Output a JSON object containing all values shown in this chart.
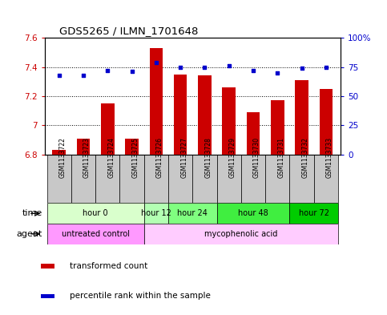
{
  "title": "GDS5265 / ILMN_1701648",
  "samples": [
    "GSM1133722",
    "GSM1133723",
    "GSM1133724",
    "GSM1133725",
    "GSM1133726",
    "GSM1133727",
    "GSM1133728",
    "GSM1133729",
    "GSM1133730",
    "GSM1133731",
    "GSM1133732",
    "GSM1133733"
  ],
  "bar_values": [
    6.83,
    6.91,
    7.15,
    6.91,
    7.53,
    7.35,
    7.34,
    7.26,
    7.09,
    7.17,
    7.31,
    7.25
  ],
  "dot_values": [
    68,
    68,
    72,
    71,
    79,
    75,
    75,
    76,
    72,
    70,
    74,
    75
  ],
  "bar_color": "#cc0000",
  "dot_color": "#0000cc",
  "ylim_left": [
    6.8,
    7.6
  ],
  "ylim_right": [
    0,
    100
  ],
  "yticks_left": [
    6.8,
    7.0,
    7.2,
    7.4,
    7.6
  ],
  "ytick_labels_left": [
    "6.8",
    "7",
    "7.2",
    "7.4",
    "7.6"
  ],
  "yticks_right": [
    0,
    25,
    50,
    75,
    100
  ],
  "ytick_labels_right": [
    "0",
    "25",
    "50",
    "75",
    "100%"
  ],
  "time_groups": [
    {
      "label": "hour 0",
      "start": 0,
      "end": 4,
      "color": "#d9ffcc"
    },
    {
      "label": "hour 12",
      "start": 4,
      "end": 5,
      "color": "#b3ffb3"
    },
    {
      "label": "hour 24",
      "start": 5,
      "end": 7,
      "color": "#80ff80"
    },
    {
      "label": "hour 48",
      "start": 7,
      "end": 10,
      "color": "#40ee40"
    },
    {
      "label": "hour 72",
      "start": 10,
      "end": 12,
      "color": "#00cc00"
    }
  ],
  "agent_groups": [
    {
      "label": "untreated control",
      "start": 0,
      "end": 4,
      "color": "#ff99ff"
    },
    {
      "label": "mycophenolic acid",
      "start": 4,
      "end": 12,
      "color": "#ffccff"
    }
  ],
  "bg_color": "#ffffff",
  "plot_bg": "#ffffff",
  "sample_bg": "#c8c8c8",
  "legend_items": [
    {
      "label": "transformed count",
      "color": "#cc0000"
    },
    {
      "label": "percentile rank within the sample",
      "color": "#0000cc"
    }
  ]
}
